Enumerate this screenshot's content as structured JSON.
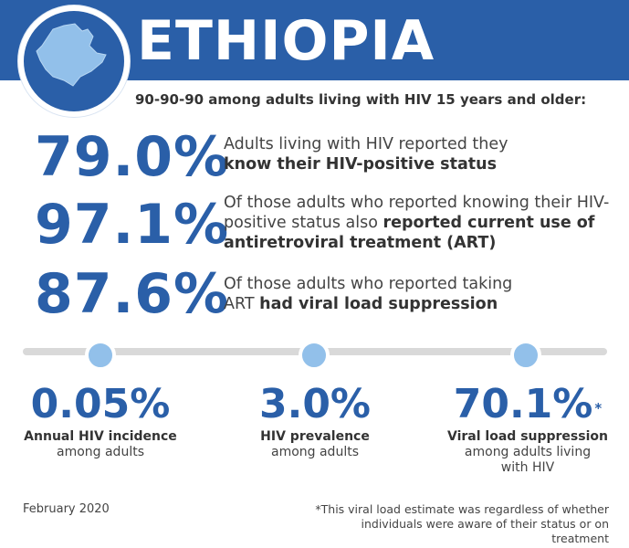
{
  "header": {
    "title": "ETHIOPIA",
    "band_color": "#2a5fa8",
    "map_icon": "ethiopia-map-icon"
  },
  "subtitle": "90-90-90 among adults living with HIV 15 years and older:",
  "cascade": [
    {
      "value": "79.0%",
      "text_plain": "Adults living with HIV reported they",
      "text_bold": "know their HIV-positive status"
    },
    {
      "value": "97.1%",
      "text_plain": "Of those adults who reported knowing their HIV-positive status also",
      "text_bold": "reported current use of antiretroviral treatment (ART)"
    },
    {
      "value": "87.6%",
      "text_plain": "Of those adults who reported taking ART",
      "text_bold": "had viral load suppression"
    }
  ],
  "kpis": [
    {
      "value": "0.05%",
      "label_bold": "Annual HIV incidence",
      "label": "among adults"
    },
    {
      "value": "3.0%",
      "label_bold": "HIV prevalence",
      "label": "among adults"
    },
    {
      "value": "70.1%",
      "asterisk": "*",
      "label_bold": "Viral load suppression",
      "label": "among adults living with HIV"
    }
  ],
  "footer": {
    "date": "February 2020",
    "note": "*This viral load estimate was regardless of whether individuals were aware of their status or on treatment"
  },
  "colors": {
    "accent": "#2a5fa8",
    "dot": "#92c0ea",
    "divider": "#d9d9d9"
  }
}
